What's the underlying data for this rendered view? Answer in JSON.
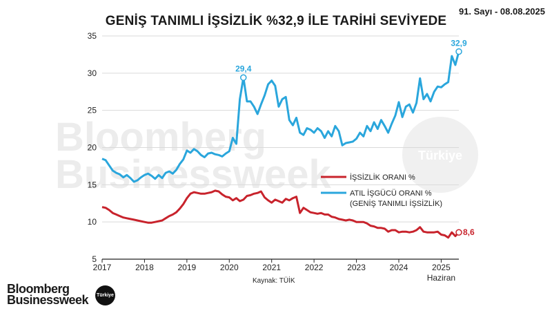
{
  "header": {
    "title": "GENİŞ TANIMLI İŞSİZLİK %32,9 İLE TARİHİ SEVİYEDE",
    "issue": "91. Sayı - 08.08.2025"
  },
  "watermark": {
    "line1": "Bloomberg",
    "line2": "Businessweek",
    "badge": "Türkiye"
  },
  "footer": {
    "source": "Kaynak: TÜİK",
    "brand_line1": "Bloomberg",
    "brand_line2": "Businessweek",
    "brand_badge": "Türkiye"
  },
  "colors": {
    "unemployment": "#c8232c",
    "underutilization": "#2aa6dc",
    "grid": "#d9d9d9",
    "axis": "#222222"
  },
  "chart_data": {
    "type": "line",
    "title": "GENİŞ TANIMLI İŞSİZLİK %32,9 İLE TARİHİ SEVİYEDE",
    "xlabel": "",
    "ylabel": "",
    "ylim": [
      5,
      35
    ],
    "xlim": [
      "2017-01",
      "2025-06"
    ],
    "yticks": [
      "5",
      "10",
      "15",
      "20",
      "25",
      "30",
      "35"
    ],
    "xticks": [
      "2017",
      "2018",
      "2019",
      "2020",
      "2021",
      "2022",
      "2023",
      "2024",
      "2025"
    ],
    "x_end_note": "Haziran",
    "grid": "horizontal",
    "legend_position": "center-right",
    "series": [
      {
        "name": "İŞSİZLİK ORANI %",
        "color": "#c8232c",
        "end_label": "8,6",
        "points": [
          [
            "2017-01",
            12.0
          ],
          [
            "2017-02",
            11.9
          ],
          [
            "2017-03",
            11.6
          ],
          [
            "2017-04",
            11.2
          ],
          [
            "2017-05",
            11.0
          ],
          [
            "2017-06",
            10.8
          ],
          [
            "2017-07",
            10.6
          ],
          [
            "2017-08",
            10.5
          ],
          [
            "2017-09",
            10.4
          ],
          [
            "2017-10",
            10.3
          ],
          [
            "2017-11",
            10.2
          ],
          [
            "2017-12",
            10.1
          ],
          [
            "2018-01",
            10.0
          ],
          [
            "2018-02",
            9.9
          ],
          [
            "2018-03",
            9.9
          ],
          [
            "2018-04",
            10.0
          ],
          [
            "2018-05",
            10.1
          ],
          [
            "2018-06",
            10.2
          ],
          [
            "2018-07",
            10.5
          ],
          [
            "2018-08",
            10.8
          ],
          [
            "2018-09",
            11.0
          ],
          [
            "2018-10",
            11.3
          ],
          [
            "2018-11",
            11.8
          ],
          [
            "2018-12",
            12.4
          ],
          [
            "2019-01",
            13.2
          ],
          [
            "2019-02",
            13.8
          ],
          [
            "2019-03",
            14.0
          ],
          [
            "2019-04",
            13.9
          ],
          [
            "2019-05",
            13.8
          ],
          [
            "2019-06",
            13.8
          ],
          [
            "2019-07",
            13.9
          ],
          [
            "2019-08",
            14.0
          ],
          [
            "2019-09",
            14.2
          ],
          [
            "2019-10",
            14.1
          ],
          [
            "2019-11",
            13.7
          ],
          [
            "2019-12",
            13.4
          ],
          [
            "2020-01",
            13.3
          ],
          [
            "2020-02",
            12.9
          ],
          [
            "2020-03",
            13.2
          ],
          [
            "2020-04",
            12.8
          ],
          [
            "2020-05",
            13.0
          ],
          [
            "2020-06",
            13.5
          ],
          [
            "2020-07",
            13.6
          ],
          [
            "2020-08",
            13.8
          ],
          [
            "2020-09",
            13.9
          ],
          [
            "2020-10",
            14.1
          ],
          [
            "2020-11",
            13.3
          ],
          [
            "2020-12",
            12.9
          ],
          [
            "2021-01",
            12.6
          ],
          [
            "2021-02",
            13.0
          ],
          [
            "2021-03",
            12.8
          ],
          [
            "2021-04",
            12.6
          ],
          [
            "2021-05",
            13.1
          ],
          [
            "2021-06",
            12.9
          ],
          [
            "2021-07",
            13.2
          ],
          [
            "2021-08",
            13.4
          ],
          [
            "2021-09",
            11.2
          ],
          [
            "2021-10",
            11.9
          ],
          [
            "2021-11",
            11.6
          ],
          [
            "2021-12",
            11.3
          ],
          [
            "2022-01",
            11.2
          ],
          [
            "2022-02",
            11.1
          ],
          [
            "2022-03",
            11.2
          ],
          [
            "2022-04",
            11.0
          ],
          [
            "2022-05",
            11.0
          ],
          [
            "2022-06",
            10.7
          ],
          [
            "2022-07",
            10.6
          ],
          [
            "2022-08",
            10.4
          ],
          [
            "2022-09",
            10.3
          ],
          [
            "2022-10",
            10.2
          ],
          [
            "2022-11",
            10.3
          ],
          [
            "2022-12",
            10.2
          ],
          [
            "2023-01",
            10.0
          ],
          [
            "2023-02",
            10.0
          ],
          [
            "2023-03",
            10.0
          ],
          [
            "2023-04",
            9.8
          ],
          [
            "2023-05",
            9.5
          ],
          [
            "2023-06",
            9.4
          ],
          [
            "2023-07",
            9.2
          ],
          [
            "2023-08",
            9.2
          ],
          [
            "2023-09",
            9.1
          ],
          [
            "2023-10",
            8.7
          ],
          [
            "2023-11",
            8.9
          ],
          [
            "2023-12",
            8.9
          ],
          [
            "2024-01",
            8.6
          ],
          [
            "2024-02",
            8.7
          ],
          [
            "2024-03",
            8.7
          ],
          [
            "2024-04",
            8.6
          ],
          [
            "2024-05",
            8.7
          ],
          [
            "2024-06",
            8.9
          ],
          [
            "2024-07",
            9.3
          ],
          [
            "2024-08",
            8.7
          ],
          [
            "2024-09",
            8.6
          ],
          [
            "2024-10",
            8.6
          ],
          [
            "2024-11",
            8.6
          ],
          [
            "2024-12",
            8.7
          ],
          [
            "2025-01",
            8.3
          ],
          [
            "2025-02",
            8.2
          ],
          [
            "2025-03",
            7.9
          ],
          [
            "2025-04",
            8.6
          ],
          [
            "2025-05",
            8.1
          ],
          [
            "2025-06",
            8.6
          ]
        ]
      },
      {
        "name": "ATIL İŞGÜCÜ ORANI %",
        "legend_subtitle": "(GENİŞ TANIMLI İŞSİZLİK)",
        "color": "#2aa6dc",
        "end_label": "32,9",
        "peak_label": "29,4",
        "peak_x": "2020-05",
        "points": [
          [
            "2017-01",
            18.5
          ],
          [
            "2017-02",
            18.3
          ],
          [
            "2017-03",
            17.6
          ],
          [
            "2017-04",
            16.9
          ],
          [
            "2017-05",
            16.6
          ],
          [
            "2017-06",
            16.4
          ],
          [
            "2017-07",
            16.0
          ],
          [
            "2017-08",
            16.3
          ],
          [
            "2017-09",
            15.9
          ],
          [
            "2017-10",
            15.4
          ],
          [
            "2017-11",
            15.6
          ],
          [
            "2017-12",
            16.0
          ],
          [
            "2018-01",
            16.3
          ],
          [
            "2018-02",
            16.5
          ],
          [
            "2018-03",
            16.2
          ],
          [
            "2018-04",
            15.8
          ],
          [
            "2018-05",
            16.3
          ],
          [
            "2018-06",
            15.9
          ],
          [
            "2018-07",
            16.6
          ],
          [
            "2018-08",
            16.8
          ],
          [
            "2018-09",
            16.5
          ],
          [
            "2018-10",
            17.0
          ],
          [
            "2018-11",
            17.8
          ],
          [
            "2018-12",
            18.4
          ],
          [
            "2019-01",
            19.6
          ],
          [
            "2019-02",
            19.3
          ],
          [
            "2019-03",
            19.8
          ],
          [
            "2019-04",
            19.5
          ],
          [
            "2019-05",
            19.0
          ],
          [
            "2019-06",
            18.7
          ],
          [
            "2019-07",
            19.2
          ],
          [
            "2019-08",
            19.3
          ],
          [
            "2019-09",
            19.1
          ],
          [
            "2019-10",
            19.0
          ],
          [
            "2019-11",
            18.8
          ],
          [
            "2019-12",
            19.2
          ],
          [
            "2020-01",
            19.5
          ],
          [
            "2020-02",
            21.3
          ],
          [
            "2020-03",
            20.5
          ],
          [
            "2020-04",
            26.5
          ],
          [
            "2020-05",
            29.4
          ],
          [
            "2020-06",
            26.2
          ],
          [
            "2020-07",
            26.2
          ],
          [
            "2020-08",
            25.5
          ],
          [
            "2020-09",
            24.5
          ],
          [
            "2020-10",
            25.8
          ],
          [
            "2020-11",
            27.0
          ],
          [
            "2020-12",
            28.5
          ],
          [
            "2021-01",
            29.0
          ],
          [
            "2021-02",
            28.3
          ],
          [
            "2021-03",
            25.5
          ],
          [
            "2021-04",
            26.5
          ],
          [
            "2021-05",
            26.8
          ],
          [
            "2021-06",
            23.7
          ],
          [
            "2021-07",
            23.0
          ],
          [
            "2021-08",
            24.0
          ],
          [
            "2021-09",
            22.0
          ],
          [
            "2021-10",
            21.7
          ],
          [
            "2021-11",
            22.6
          ],
          [
            "2021-12",
            22.4
          ],
          [
            "2022-01",
            22.0
          ],
          [
            "2022-02",
            22.6
          ],
          [
            "2022-03",
            22.2
          ],
          [
            "2022-04",
            21.3
          ],
          [
            "2022-05",
            22.2
          ],
          [
            "2022-06",
            21.5
          ],
          [
            "2022-07",
            22.9
          ],
          [
            "2022-08",
            22.2
          ],
          [
            "2022-09",
            20.3
          ],
          [
            "2022-10",
            20.6
          ],
          [
            "2022-11",
            20.7
          ],
          [
            "2022-12",
            20.8
          ],
          [
            "2023-01",
            21.2
          ],
          [
            "2023-02",
            22.0
          ],
          [
            "2023-03",
            21.5
          ],
          [
            "2023-04",
            22.9
          ],
          [
            "2023-05",
            22.2
          ],
          [
            "2023-06",
            23.4
          ],
          [
            "2023-07",
            22.5
          ],
          [
            "2023-08",
            23.7
          ],
          [
            "2023-09",
            22.9
          ],
          [
            "2023-10",
            22.0
          ],
          [
            "2023-11",
            23.2
          ],
          [
            "2023-12",
            24.3
          ],
          [
            "2024-01",
            26.1
          ],
          [
            "2024-02",
            24.1
          ],
          [
            "2024-03",
            25.5
          ],
          [
            "2024-04",
            25.8
          ],
          [
            "2024-05",
            24.7
          ],
          [
            "2024-06",
            26.0
          ],
          [
            "2024-07",
            29.3
          ],
          [
            "2024-08",
            26.5
          ],
          [
            "2024-09",
            27.2
          ],
          [
            "2024-10",
            26.2
          ],
          [
            "2024-11",
            27.5
          ],
          [
            "2024-12",
            28.2
          ],
          [
            "2025-01",
            28.1
          ],
          [
            "2025-02",
            28.5
          ],
          [
            "2025-03",
            28.8
          ],
          [
            "2025-04",
            32.3
          ],
          [
            "2025-05",
            31.1
          ],
          [
            "2025-06",
            32.9
          ]
        ]
      }
    ]
  }
}
